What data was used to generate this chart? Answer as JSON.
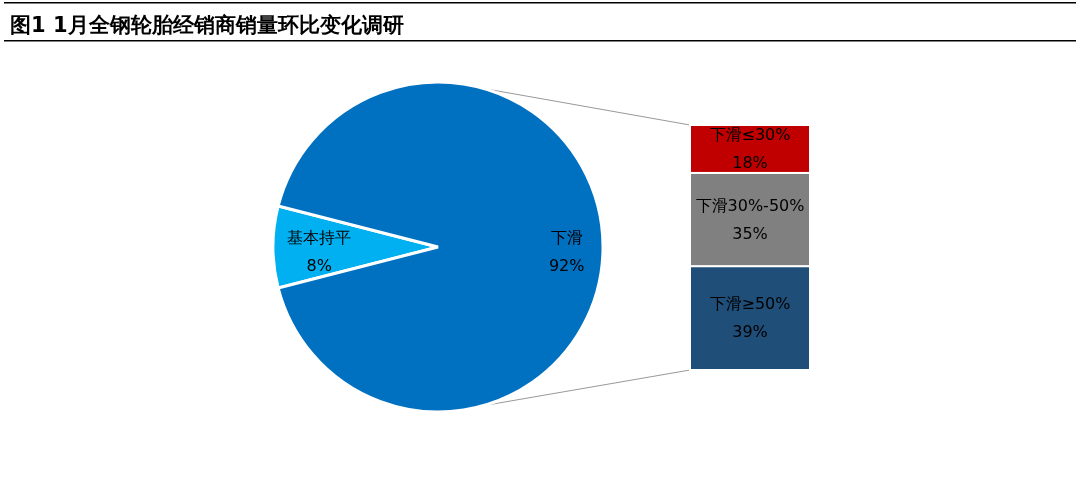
{
  "chart_data": [
    {
      "type": "pie",
      "title": "图1 1月全钢轮胎经销商销量环比变化调研",
      "categories": [
        "基本持平",
        "下滑"
      ],
      "values": [
        8,
        92
      ],
      "colors": [
        "#00b0f0",
        "#0070c0"
      ],
      "value_labels": [
        "8%",
        "92%"
      ]
    },
    {
      "type": "bar",
      "stacked": true,
      "categories": [
        null
      ],
      "series": [
        {
          "name": "下滑≥50%",
          "color": "#1f4e79",
          "values": [
            39
          ],
          "value_labels": [
            "39%"
          ]
        },
        {
          "name": "下滑30%-50%",
          "color": "#808080",
          "values": [
            35
          ],
          "value_labels": [
            "35%"
          ]
        },
        {
          "name": "下滑≤30%",
          "color": "#c00000",
          "values": [
            18
          ],
          "value_labels": [
            "18%"
          ]
        }
      ]
    }
  ]
}
